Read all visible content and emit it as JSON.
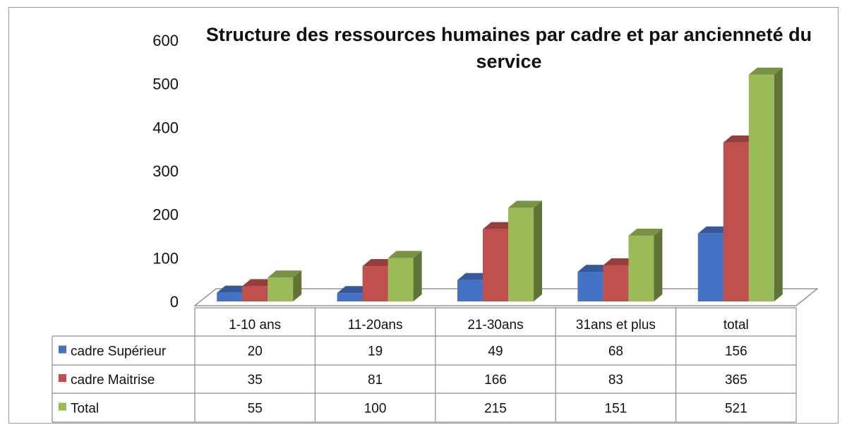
{
  "chart_data": {
    "type": "bar",
    "title": "Structure des ressources humaines par cadre et par ancienneté du service",
    "categories": [
      "1-10 ans",
      "11-20ans",
      "21-30ans",
      "31ans et plus",
      "total"
    ],
    "series": [
      {
        "name": "cadre Supérieur",
        "color": "#4472c4",
        "values": [
          20,
          19,
          49,
          68,
          156
        ]
      },
      {
        "name": "cadre Maitrise",
        "color": "#c0504d",
        "values": [
          35,
          81,
          166,
          83,
          365
        ]
      },
      {
        "name": "Total",
        "color": "#9bbb59",
        "values": [
          55,
          100,
          215,
          151,
          521
        ]
      }
    ],
    "yticks": [
      0,
      100,
      200,
      300,
      400,
      500,
      600
    ],
    "ylim": [
      0,
      600
    ],
    "style": "3d-clustered-column",
    "data_table": true,
    "grid": false
  }
}
